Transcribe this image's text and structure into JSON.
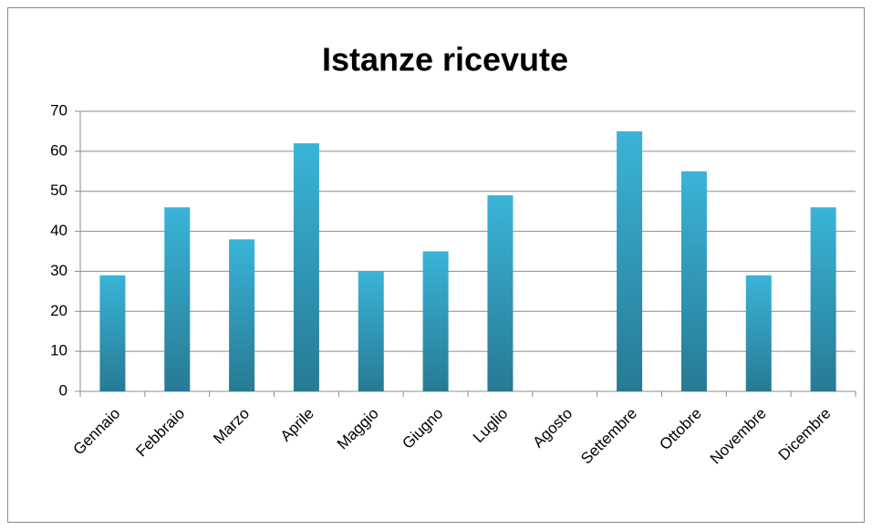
{
  "chart_data": {
    "type": "bar",
    "title": "Istanze ricevute",
    "categories": [
      "Gennaio",
      "Febbraio",
      "Marzo",
      "Aprile",
      "Maggio",
      "Giugno",
      "Luglio",
      "Agosto",
      "Settembre",
      "Ottobre",
      "Novembre",
      "Dicembre"
    ],
    "values": [
      29,
      46,
      38,
      62,
      30,
      35,
      49,
      0,
      65,
      55,
      29,
      46
    ],
    "color": "#3ab4d8",
    "ylim": [
      0,
      70
    ],
    "yticks": [
      0,
      10,
      20,
      30,
      40,
      50,
      60,
      70
    ],
    "grid": true
  }
}
